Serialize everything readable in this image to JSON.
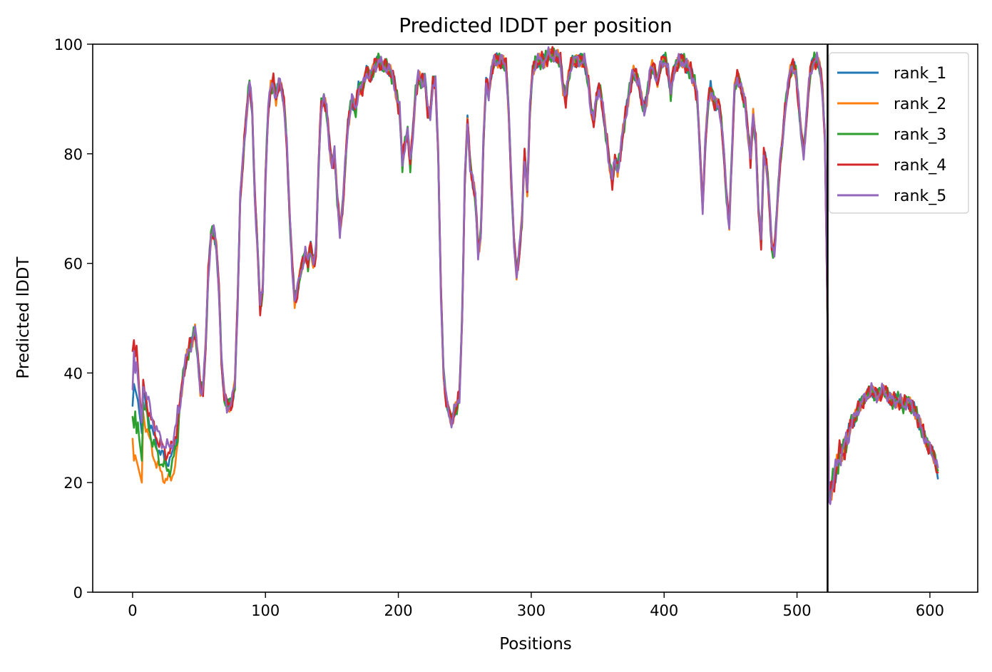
{
  "chart_data": {
    "type": "line",
    "title": "Predicted lDDT per position",
    "xlabel": "Positions",
    "ylabel": "Predicted lDDT",
    "xlim": [
      -30,
      636
    ],
    "ylim": [
      0,
      100
    ],
    "xticks": [
      0,
      100,
      200,
      300,
      400,
      500,
      600
    ],
    "yticks": [
      0,
      20,
      40,
      60,
      80,
      100
    ],
    "xtick_labels": [
      "0",
      "100",
      "200",
      "300",
      "400",
      "500",
      "600"
    ],
    "ytick_labels": [
      "0",
      "20",
      "40",
      "60",
      "80",
      "100"
    ],
    "grid": false,
    "legend_position": "upper-right",
    "vertical_line": {
      "x": 523,
      "color": "#000000"
    },
    "base_profile": [
      [
        0,
        38
      ],
      [
        3,
        40
      ],
      [
        6,
        37
      ],
      [
        8,
        36
      ],
      [
        10,
        34
      ],
      [
        12,
        32
      ],
      [
        15,
        29
      ],
      [
        18,
        27
      ],
      [
        22,
        25
      ],
      [
        25,
        24
      ],
      [
        28,
        24
      ],
      [
        30,
        25
      ],
      [
        33,
        28
      ],
      [
        36,
        35
      ],
      [
        39,
        41
      ],
      [
        42,
        44
      ],
      [
        45,
        46
      ],
      [
        47,
        48
      ],
      [
        49,
        43
      ],
      [
        51,
        37
      ],
      [
        53,
        37
      ],
      [
        55,
        45
      ],
      [
        57,
        58
      ],
      [
        59,
        65
      ],
      [
        61,
        66
      ],
      [
        63,
        63
      ],
      [
        65,
        55
      ],
      [
        67,
        42
      ],
      [
        69,
        36
      ],
      [
        71,
        34
      ],
      [
        73,
        34
      ],
      [
        75,
        35
      ],
      [
        77,
        38
      ],
      [
        79,
        52
      ],
      [
        81,
        72
      ],
      [
        84,
        82
      ],
      [
        86,
        88
      ],
      [
        88,
        93
      ],
      [
        90,
        88
      ],
      [
        92,
        72
      ],
      [
        94,
        63
      ],
      [
        96,
        52
      ],
      [
        98,
        55
      ],
      [
        100,
        75
      ],
      [
        102,
        88
      ],
      [
        104,
        92
      ],
      [
        106,
        93
      ],
      [
        108,
        90
      ],
      [
        110,
        93
      ],
      [
        112,
        92
      ],
      [
        114,
        89
      ],
      [
        116,
        82
      ],
      [
        118,
        70
      ],
      [
        120,
        60
      ],
      [
        122,
        53
      ],
      [
        124,
        55
      ],
      [
        126,
        58
      ],
      [
        128,
        60
      ],
      [
        130,
        62
      ],
      [
        132,
        60
      ],
      [
        134,
        63
      ],
      [
        136,
        60
      ],
      [
        138,
        62
      ],
      [
        140,
        78
      ],
      [
        142,
        89
      ],
      [
        144,
        90
      ],
      [
        146,
        88
      ],
      [
        148,
        82
      ],
      [
        150,
        78
      ],
      [
        152,
        80
      ],
      [
        154,
        72
      ],
      [
        156,
        66
      ],
      [
        158,
        70
      ],
      [
        160,
        78
      ],
      [
        162,
        85
      ],
      [
        165,
        90
      ],
      [
        168,
        88
      ],
      [
        170,
        92
      ],
      [
        173,
        92
      ],
      [
        176,
        95
      ],
      [
        179,
        94
      ],
      [
        182,
        96
      ],
      [
        185,
        97
      ],
      [
        188,
        96
      ],
      [
        191,
        96
      ],
      [
        194,
        95
      ],
      [
        197,
        93
      ],
      [
        199,
        90
      ],
      [
        201,
        88
      ],
      [
        203,
        78
      ],
      [
        205,
        82
      ],
      [
        207,
        84
      ],
      [
        209,
        78
      ],
      [
        211,
        84
      ],
      [
        213,
        91
      ],
      [
        215,
        94
      ],
      [
        218,
        93
      ],
      [
        220,
        94
      ],
      [
        222,
        88
      ],
      [
        224,
        87
      ],
      [
        226,
        93
      ],
      [
        228,
        93
      ],
      [
        230,
        80
      ],
      [
        232,
        55
      ],
      [
        234,
        40
      ],
      [
        236,
        35
      ],
      [
        238,
        33
      ],
      [
        240,
        31
      ],
      [
        242,
        33
      ],
      [
        244,
        34
      ],
      [
        246,
        36
      ],
      [
        248,
        50
      ],
      [
        250,
        75
      ],
      [
        252,
        86
      ],
      [
        254,
        78
      ],
      [
        256,
        75
      ],
      [
        258,
        72
      ],
      [
        260,
        62
      ],
      [
        262,
        65
      ],
      [
        264,
        82
      ],
      [
        266,
        93
      ],
      [
        268,
        91
      ],
      [
        270,
        95
      ],
      [
        272,
        97
      ],
      [
        275,
        97
      ],
      [
        278,
        97
      ],
      [
        281,
        96
      ],
      [
        283,
        88
      ],
      [
        285,
        75
      ],
      [
        287,
        64
      ],
      [
        289,
        58
      ],
      [
        291,
        62
      ],
      [
        293,
        68
      ],
      [
        295,
        80
      ],
      [
        297,
        73
      ],
      [
        299,
        88
      ],
      [
        301,
        95
      ],
      [
        304,
        97
      ],
      [
        307,
        97
      ],
      [
        310,
        97
      ],
      [
        313,
        98
      ],
      [
        316,
        98
      ],
      [
        319,
        98
      ],
      [
        322,
        97
      ],
      [
        324,
        92
      ],
      [
        326,
        90
      ],
      [
        328,
        94
      ],
      [
        331,
        97
      ],
      [
        334,
        97
      ],
      [
        337,
        97
      ],
      [
        340,
        97
      ],
      [
        343,
        93
      ],
      [
        345,
        88
      ],
      [
        347,
        86
      ],
      [
        349,
        90
      ],
      [
        351,
        92
      ],
      [
        353,
        90
      ],
      [
        355,
        86
      ],
      [
        357,
        82
      ],
      [
        359,
        78
      ],
      [
        361,
        75
      ],
      [
        363,
        79
      ],
      [
        365,
        77
      ],
      [
        367,
        80
      ],
      [
        369,
        84
      ],
      [
        371,
        87
      ],
      [
        373,
        90
      ],
      [
        375,
        93
      ],
      [
        377,
        95
      ],
      [
        379,
        94
      ],
      [
        381,
        93
      ],
      [
        383,
        90
      ],
      [
        385,
        88
      ],
      [
        387,
        90
      ],
      [
        389,
        94
      ],
      [
        391,
        96
      ],
      [
        393,
        95
      ],
      [
        395,
        93
      ],
      [
        397,
        96
      ],
      [
        399,
        97
      ],
      [
        401,
        97
      ],
      [
        403,
        95
      ],
      [
        405,
        91
      ],
      [
        407,
        95
      ],
      [
        409,
        96
      ],
      [
        411,
        97
      ],
      [
        414,
        97
      ],
      [
        417,
        96
      ],
      [
        420,
        95
      ],
      [
        423,
        93
      ],
      [
        425,
        90
      ],
      [
        427,
        80
      ],
      [
        429,
        70
      ],
      [
        431,
        82
      ],
      [
        433,
        89
      ],
      [
        435,
        92
      ],
      [
        437,
        90
      ],
      [
        439,
        89
      ],
      [
        441,
        89
      ],
      [
        443,
        86
      ],
      [
        445,
        80
      ],
      [
        447,
        72
      ],
      [
        449,
        67
      ],
      [
        451,
        80
      ],
      [
        453,
        92
      ],
      [
        455,
        94
      ],
      [
        457,
        93
      ],
      [
        459,
        91
      ],
      [
        461,
        89
      ],
      [
        463,
        84
      ],
      [
        465,
        79
      ],
      [
        467,
        87
      ],
      [
        469,
        82
      ],
      [
        471,
        70
      ],
      [
        473,
        64
      ],
      [
        475,
        80
      ],
      [
        477,
        78
      ],
      [
        479,
        72
      ],
      [
        481,
        63
      ],
      [
        483,
        62
      ],
      [
        485,
        70
      ],
      [
        487,
        78
      ],
      [
        489,
        82
      ],
      [
        491,
        88
      ],
      [
        493,
        92
      ],
      [
        495,
        95
      ],
      [
        497,
        96
      ],
      [
        499,
        95
      ],
      [
        501,
        90
      ],
      [
        503,
        84
      ],
      [
        505,
        80
      ],
      [
        507,
        86
      ],
      [
        509,
        93
      ],
      [
        511,
        96
      ],
      [
        513,
        97
      ],
      [
        515,
        97
      ],
      [
        517,
        96
      ],
      [
        519,
        92
      ],
      [
        521,
        83
      ],
      [
        523,
        50
      ],
      [
        524,
        18
      ],
      [
        526,
        20
      ],
      [
        528,
        22
      ],
      [
        530,
        24
      ],
      [
        532,
        26
      ],
      [
        535,
        27
      ],
      [
        538,
        29
      ],
      [
        541,
        31
      ],
      [
        544,
        32
      ],
      [
        547,
        34
      ],
      [
        550,
        35
      ],
      [
        553,
        36
      ],
      [
        556,
        37
      ],
      [
        559,
        36
      ],
      [
        562,
        36
      ],
      [
        565,
        37
      ],
      [
        568,
        36
      ],
      [
        571,
        35
      ],
      [
        574,
        35
      ],
      [
        577,
        35
      ],
      [
        580,
        34
      ],
      [
        583,
        35
      ],
      [
        586,
        34
      ],
      [
        589,
        33
      ],
      [
        592,
        31
      ],
      [
        595,
        29
      ],
      [
        598,
        27
      ],
      [
        601,
        26
      ],
      [
        604,
        24
      ],
      [
        606,
        22
      ]
    ],
    "series": [
      {
        "name": "rank_1",
        "color": "#1f77b4",
        "phase": 0.0,
        "amp": 1.2,
        "start": [
          34,
          38,
          37,
          36,
          35,
          33,
          31,
          29
        ]
      },
      {
        "name": "rank_2",
        "color": "#ff7f0e",
        "phase": 1.1,
        "amp": 1.2,
        "start": [
          28,
          24,
          25,
          24,
          23,
          22,
          21,
          20
        ]
      },
      {
        "name": "rank_3",
        "color": "#2ca02c",
        "phase": 2.3,
        "amp": 1.4,
        "start": [
          32,
          30,
          33,
          29,
          31,
          28,
          26,
          24
        ]
      },
      {
        "name": "rank_4",
        "color": "#d62728",
        "phase": 3.2,
        "amp": 1.5,
        "start": [
          44,
          46,
          43,
          45,
          41,
          37,
          34,
          31
        ]
      },
      {
        "name": "rank_5",
        "color": "#9467bd",
        "phase": 4.4,
        "amp": 1.3,
        "start": [
          37,
          44,
          40,
          42,
          39,
          36,
          33,
          31
        ]
      }
    ]
  }
}
